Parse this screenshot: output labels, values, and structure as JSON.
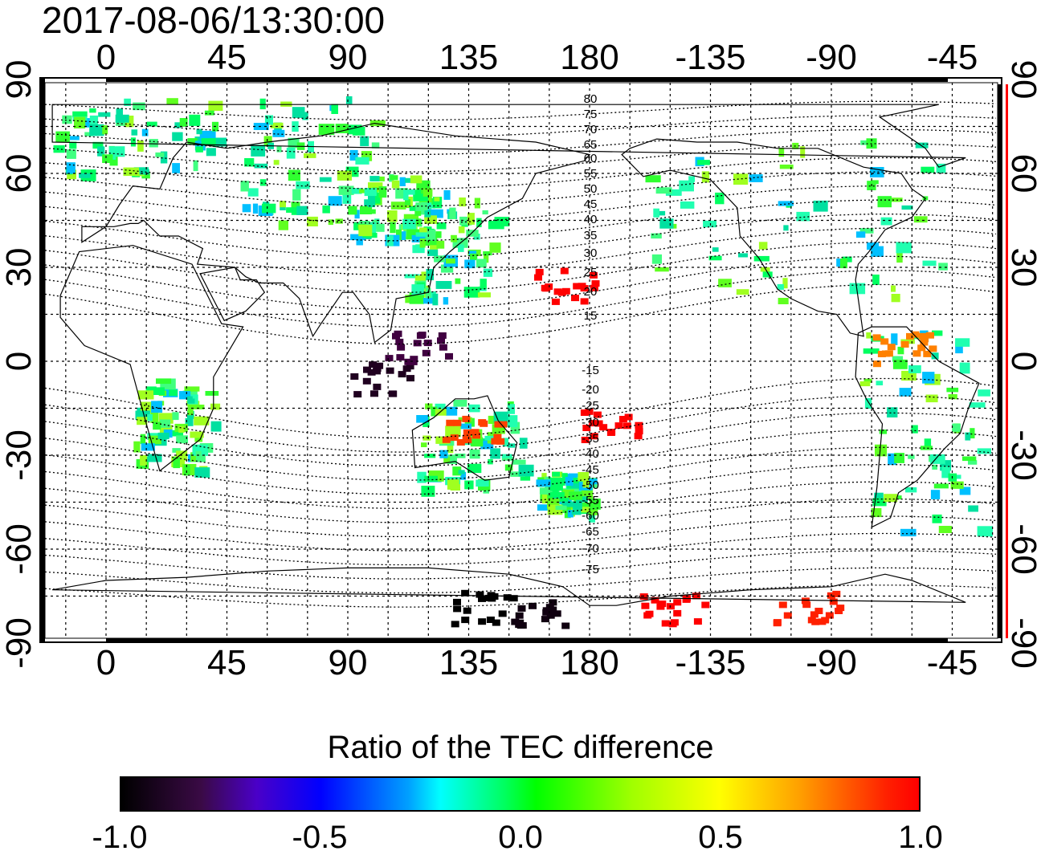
{
  "title": "2017-08-06/13:30:00",
  "lon_ticks_top": [
    "0",
    "45",
    "90",
    "135",
    "180",
    "-135",
    "-90",
    "-45"
  ],
  "lon_ticks_bottom": [
    "0",
    "45",
    "90",
    "135",
    "180",
    "-135",
    "-90",
    "-45"
  ],
  "lat_ticks_left": [
    "90",
    "60",
    "30",
    "0",
    "-30",
    "-60",
    "-90"
  ],
  "lat_ticks_right": [
    "90",
    "60",
    "30",
    "0",
    "-30",
    "-60",
    "-90"
  ],
  "contour_labels": [
    "80",
    "75",
    "70",
    "65",
    "60",
    "55",
    "50",
    "45",
    "40",
    "35",
    "30",
    "25",
    "20",
    "15",
    "-15",
    "-20",
    "-25",
    "-30",
    "-35",
    "-40",
    "-45",
    "-50",
    "-55",
    "-60",
    "-65",
    "-70",
    "-75"
  ],
  "colorbar": {
    "title": "Ratio of the TEC difference",
    "labels": [
      "-1.0",
      "-0.5",
      "0.0",
      "0.5",
      "1.0"
    ],
    "min": -1.0,
    "max": 1.0
  },
  "colors": {
    "background": "#ffffff",
    "coastline": "#000000",
    "neutral": "#00ff60",
    "positive": "#ff0000",
    "negative": "#000000",
    "right_axis_accent": "#ff0000"
  }
}
